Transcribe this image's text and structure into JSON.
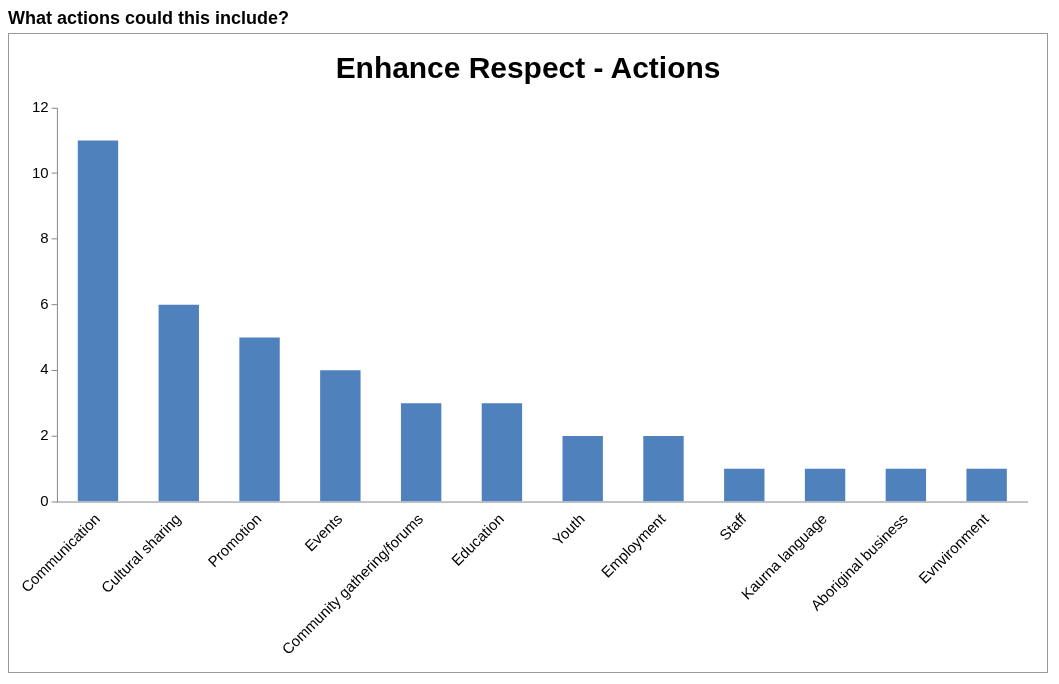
{
  "chart_data": {
    "type": "bar",
    "title": "Enhance Respect - Actions",
    "annotations": [
      "What actions could this include?"
    ],
    "categories": [
      "Communication",
      "Cultural sharing",
      "Promotion",
      "Events",
      "Community gathering/forums",
      "Education",
      "Youth",
      "Employment",
      "Staff",
      "Kaurna language",
      "Aboriginal business",
      "Evnvironment"
    ],
    "values": [
      11,
      6,
      5,
      4,
      3,
      3,
      2,
      2,
      1,
      1,
      1,
      1
    ],
    "color": "#4f81bd",
    "ylim": [
      0,
      12
    ],
    "yticks": [
      0,
      2,
      4,
      6,
      8,
      10,
      12
    ],
    "grid": false,
    "legend": false
  }
}
